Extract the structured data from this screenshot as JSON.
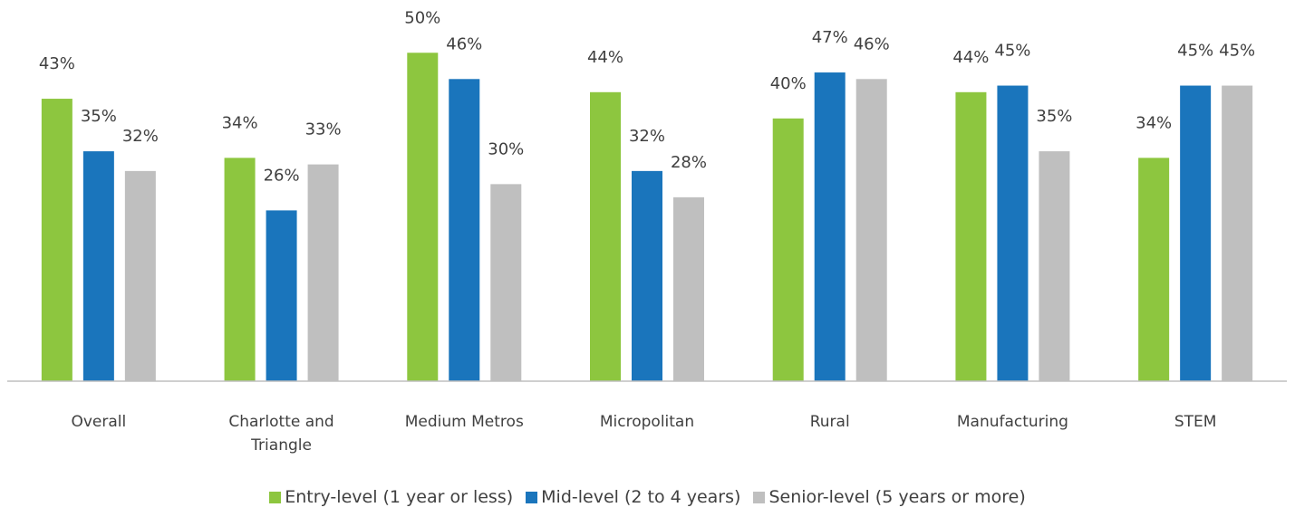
{
  "chart_data": {
    "type": "bar",
    "categories": [
      "Overall",
      "Charlotte and Triangle",
      "Medium Metros",
      "Micropolitan",
      "Rural",
      "Manufacturing",
      "STEM"
    ],
    "series": [
      {
        "name": "Entry-level (1 year or less)",
        "color": "#8dc63f",
        "values": [
          43,
          34,
          50,
          44,
          40,
          44,
          34
        ],
        "value_labels": [
          "43%",
          "34%",
          "50%",
          "44%",
          "40%",
          "44%",
          "34%"
        ]
      },
      {
        "name": "Mid-level (2 to 4 years)",
        "color": "#1a75bc",
        "values": [
          35,
          26,
          46,
          32,
          47,
          45,
          45
        ],
        "value_labels": [
          "35%",
          "26%",
          "46%",
          "32%",
          "47%",
          "45%",
          "45%"
        ]
      },
      {
        "name": "Senior-level (5 years or more)",
        "color": "#bfbfbf",
        "values": [
          32,
          33,
          30,
          28,
          46,
          35,
          45
        ],
        "value_labels": [
          "32%",
          "33%",
          "30%",
          "28%",
          "46%",
          "35%",
          "45%"
        ]
      }
    ],
    "ylim": [
      0,
      55
    ],
    "legend": "bottom"
  }
}
